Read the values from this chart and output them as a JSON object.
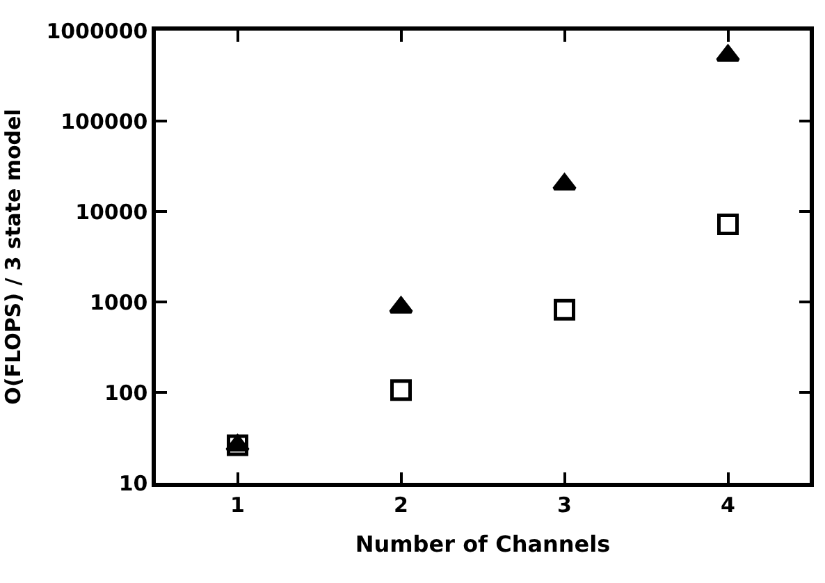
{
  "chart_data": {
    "type": "scatter",
    "xlabel": "Number of Channels",
    "ylabel": "O(FLOPS) / 3 state model",
    "x": [
      1,
      2,
      3,
      4
    ],
    "series": [
      {
        "color": "#000000",
        "marker": "square",
        "values": [
          26,
          106,
          820,
          7200
        ]
      },
      {
        "color": "#000000",
        "marker": "triangle",
        "values": [
          26,
          870,
          20000,
          530000
        ]
      }
    ],
    "xlim": [
      0.5,
      4.5
    ],
    "xticks": [
      1,
      2,
      3,
      4
    ],
    "ylim": [
      10,
      1000000
    ],
    "yticks": [
      10,
      100,
      1000,
      10000,
      100000,
      1000000
    ],
    "log": "y"
  }
}
